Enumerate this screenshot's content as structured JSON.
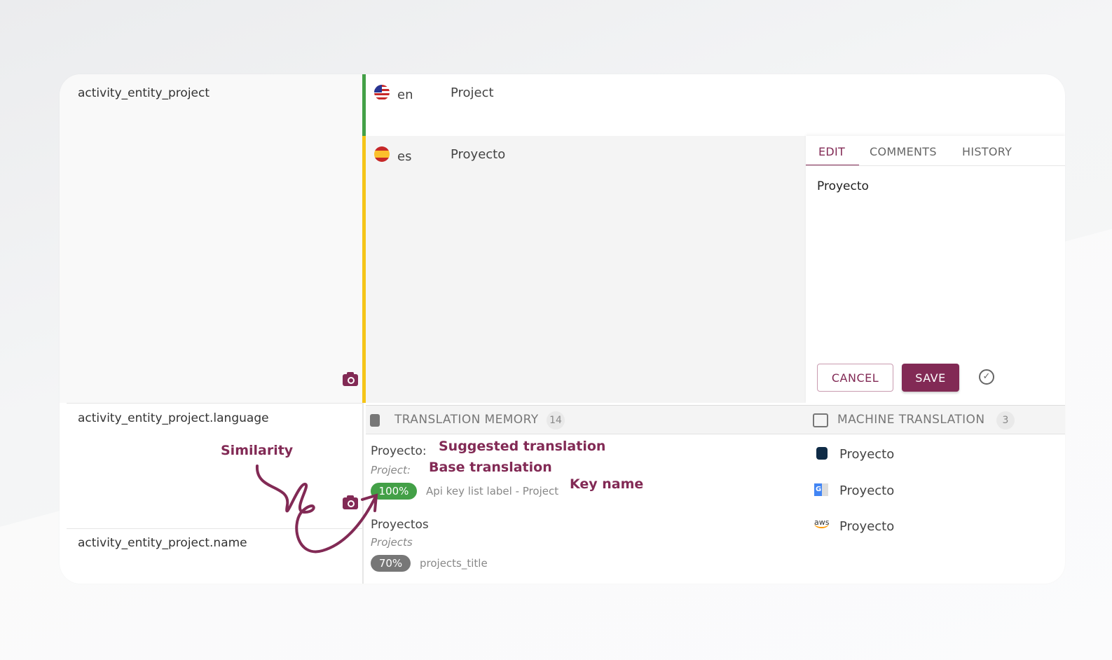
{
  "keys": [
    "activity_entity_project",
    "activity_entity_project.language",
    "activity_entity_project.name"
  ],
  "base": {
    "lang": "en",
    "text": "Project"
  },
  "target": {
    "lang": "es",
    "text": "Proyecto"
  },
  "editor": {
    "tabs": [
      "EDIT",
      "COMMENTS",
      "HISTORY"
    ],
    "active_tab": "EDIT",
    "value": "Proyecto",
    "cancel": "CANCEL",
    "save": "SAVE"
  },
  "tm": {
    "title": "TRANSLATION MEMORY",
    "count": "14",
    "items": [
      {
        "suggested": "Proyecto:",
        "base": "Project:",
        "similarity": "100%",
        "key": "Api key list label - Project"
      },
      {
        "suggested": "Proyectos",
        "base": "Projects",
        "similarity": "70%",
        "key": "projects_title"
      }
    ]
  },
  "mt": {
    "title": "MACHINE TRANSLATION",
    "count": "3",
    "items": [
      {
        "provider": "deepl-icon",
        "text": "Proyecto"
      },
      {
        "provider": "google-translate-icon",
        "text": "Proyecto"
      },
      {
        "provider": "aws-icon",
        "text": "Proyecto",
        "logo": "aws"
      }
    ]
  },
  "annotations": {
    "similarity": "Similarity",
    "suggested": "Suggested translation",
    "base": "Base translation",
    "key": "Key name"
  },
  "colors": {
    "brand": "#822a55",
    "green": "#43a047",
    "yellow": "#f5c518",
    "grey_pill": "#777777"
  }
}
